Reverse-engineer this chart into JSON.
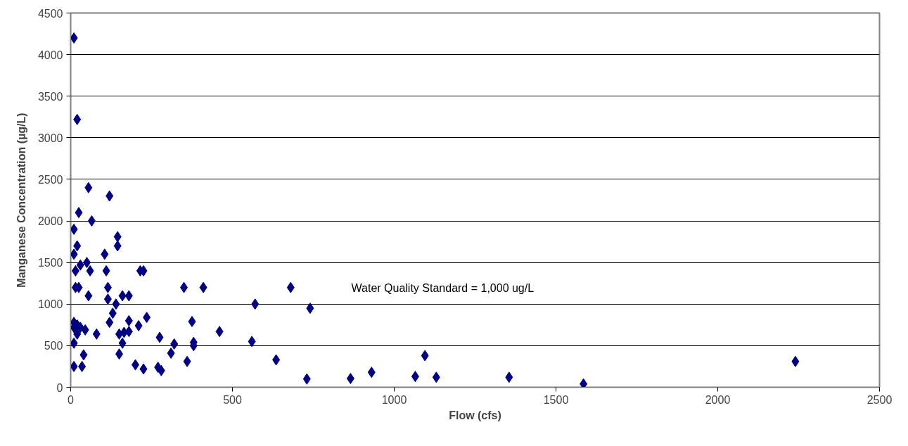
{
  "chart_data": {
    "type": "scatter",
    "xlabel": "Flow (cfs)",
    "ylabel": "Manganese Concentration (µg/L)",
    "annotations": [
      "Water Quality Standard = 1,000 ug/L"
    ],
    "xlim": [
      0,
      2500
    ],
    "ylim": [
      0,
      4500
    ],
    "xticks": [
      0,
      500,
      1000,
      1500,
      2000,
      2500
    ],
    "yticks": [
      0,
      500,
      1000,
      1500,
      2000,
      2500,
      3000,
      3500,
      4000,
      4500
    ],
    "grid": "y",
    "marker": "diamond",
    "series": [
      {
        "color": "#000080",
        "x": [
          10,
          20,
          55,
          120,
          25,
          65,
          10,
          145,
          20,
          145,
          10,
          105,
          50,
          30,
          15,
          60,
          110,
          215,
          225,
          15,
          25,
          115,
          350,
          410,
          680,
          55,
          160,
          180,
          115,
          140,
          570,
          740,
          130,
          235,
          180,
          375,
          10,
          120,
          20,
          210,
          10,
          30,
          45,
          165,
          20,
          80,
          150,
          180,
          460,
          275,
          560,
          10,
          160,
          380,
          320,
          380,
          150,
          40,
          310,
          1095,
          635,
          360,
          2240,
          200,
          10,
          35,
          270,
          225,
          280,
          930,
          1065,
          1130,
          1355,
          730,
          865,
          1585
        ],
        "values": [
          4200,
          3220,
          2400,
          2300,
          2100,
          2000,
          1900,
          1810,
          1700,
          1700,
          1600,
          1600,
          1500,
          1470,
          1400,
          1400,
          1400,
          1400,
          1400,
          1200,
          1200,
          1200,
          1200,
          1200,
          1200,
          1100,
          1100,
          1100,
          1060,
          1000,
          1000,
          950,
          890,
          840,
          800,
          790,
          780,
          780,
          750,
          740,
          720,
          720,
          690,
          660,
          640,
          640,
          640,
          670,
          670,
          600,
          550,
          530,
          530,
          540,
          520,
          500,
          400,
          390,
          410,
          380,
          330,
          310,
          310,
          270,
          250,
          250,
          240,
          220,
          200,
          180,
          130,
          120,
          120,
          100,
          105,
          40
        ]
      }
    ]
  }
}
